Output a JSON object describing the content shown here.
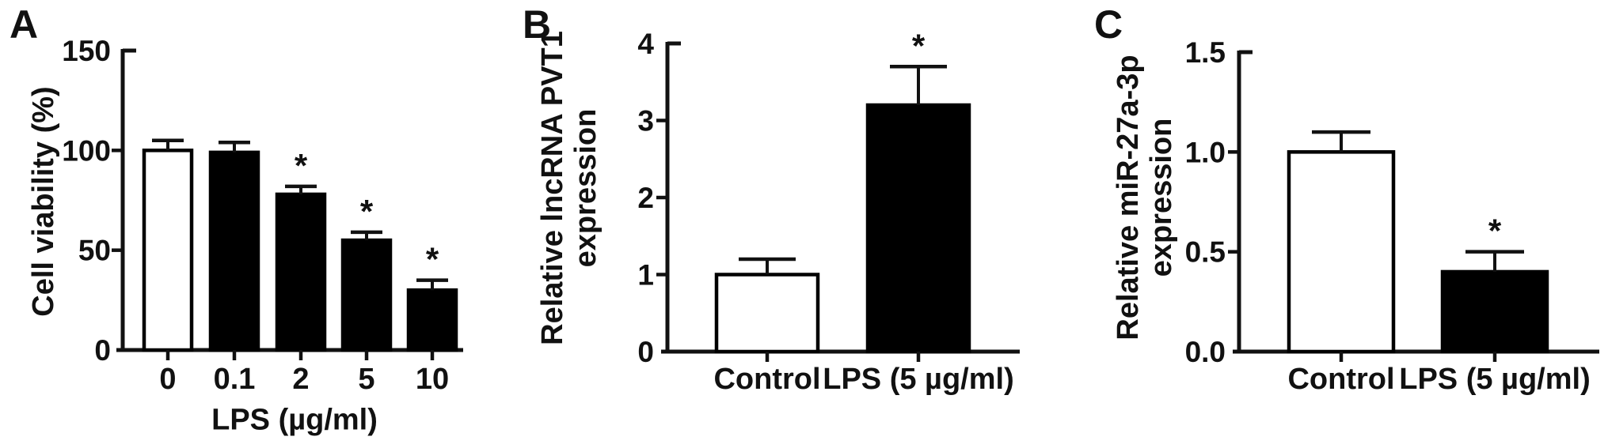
{
  "figure": {
    "background": "#ffffff",
    "text_color": "#111111",
    "bar_outline_color": "#000000",
    "bar_filled_color": "#000000",
    "bar_open_color": "#ffffff"
  },
  "chart_data": [
    {
      "panel": "A",
      "type": "bar",
      "title": "",
      "categories": [
        "0",
        "0.1",
        "2",
        "5",
        "10"
      ],
      "values": [
        100,
        99,
        78,
        55,
        30
      ],
      "errors": [
        5,
        5,
        4,
        4,
        5
      ],
      "significance": [
        "",
        "",
        "*",
        "*",
        "*"
      ],
      "bar_fills": [
        "white",
        "black",
        "black",
        "black",
        "black"
      ],
      "xlabel": "LPS (µg/ml)",
      "ylabel": "Cell viability (%)",
      "ylabel_lines": [
        "Cell viability (%)"
      ],
      "ylim": [
        0,
        150
      ],
      "yticks": [
        0,
        50,
        100,
        150
      ],
      "ytick_labels": [
        "0",
        "50",
        "100",
        "150"
      ],
      "grid": false,
      "legend": "none"
    },
    {
      "panel": "B",
      "type": "bar",
      "title": "",
      "categories": [
        "Control",
        "LPS (5 µg/ml)"
      ],
      "values": [
        1.0,
        3.2
      ],
      "errors": [
        0.2,
        0.5
      ],
      "significance": [
        "",
        "*"
      ],
      "bar_fills": [
        "white",
        "black"
      ],
      "xlabel": "",
      "ylabel": "Relative lncRNA PVT1 expression",
      "ylabel_lines": [
        "Relative lncRNA PVT1",
        "expression"
      ],
      "ylim": [
        0,
        4
      ],
      "yticks": [
        0,
        1,
        2,
        3,
        4
      ],
      "ytick_labels": [
        "0",
        "1",
        "2",
        "3",
        "4"
      ],
      "grid": false,
      "legend": "none"
    },
    {
      "panel": "C",
      "type": "bar",
      "title": "",
      "categories": [
        "Control",
        "LPS (5 µg/ml)"
      ],
      "values": [
        1.0,
        0.4
      ],
      "errors": [
        0.1,
        0.1
      ],
      "significance": [
        "",
        "*"
      ],
      "bar_fills": [
        "white",
        "black"
      ],
      "xlabel": "",
      "ylabel": "Relative miR-27a-3p expression",
      "ylabel_lines": [
        "Relative miR-27a-3p",
        "expression"
      ],
      "ylim": [
        0,
        1.5
      ],
      "yticks": [
        0,
        0.5,
        1.0,
        1.5
      ],
      "ytick_labels": [
        "0.0",
        "0.5",
        "1.0",
        "1.5"
      ],
      "grid": false,
      "legend": "none"
    }
  ]
}
